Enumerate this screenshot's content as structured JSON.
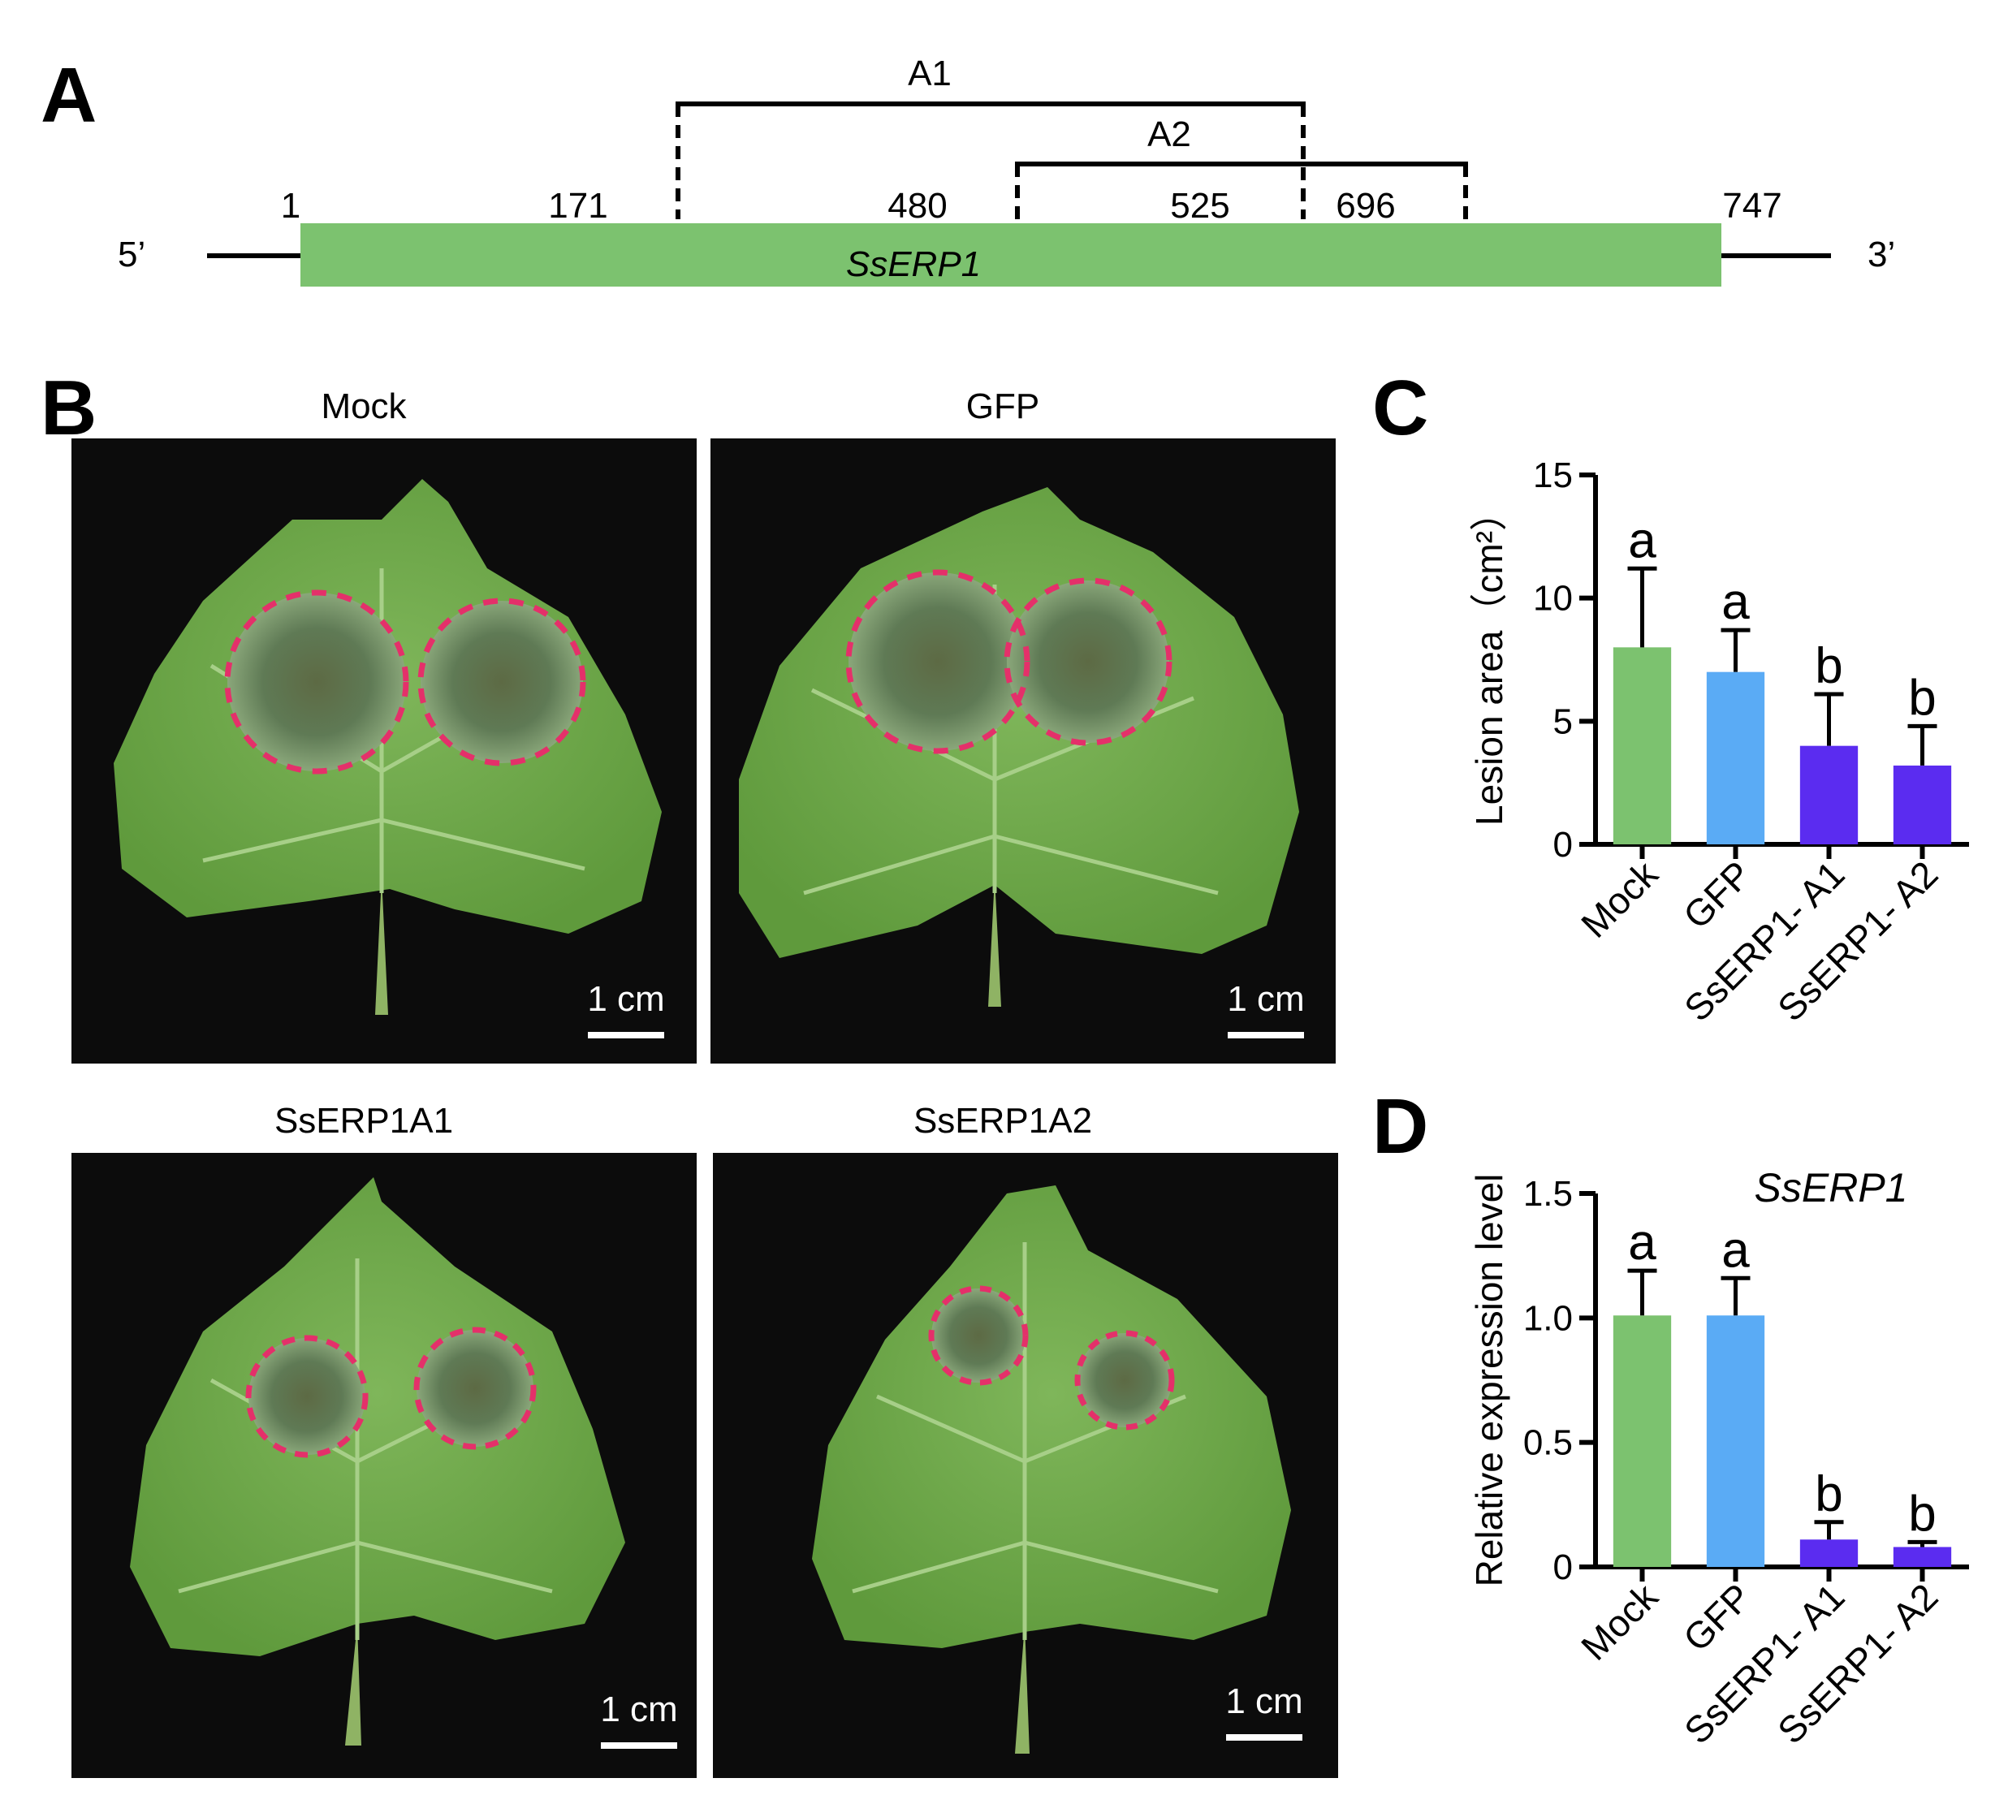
{
  "panel_a": {
    "letter": "A",
    "five_prime": "5’",
    "three_prime": "3’",
    "gene_label": "SsERP1",
    "positions": [
      "1",
      "171",
      "480",
      "525",
      "696",
      "747"
    ],
    "fragment_a1": "A1",
    "fragment_a2": "A2",
    "gene_color": "#7cc26f"
  },
  "panel_b": {
    "letter": "B",
    "photos": [
      {
        "title": "Mock",
        "scale": "1 cm"
      },
      {
        "title": "GFP",
        "scale": "1 cm"
      },
      {
        "title": "SsERP1A1",
        "scale": "1 cm"
      },
      {
        "title": "SsERP1A2",
        "scale": "1 cm"
      }
    ]
  },
  "chart_data": [
    {
      "panel": "C",
      "type": "bar",
      "title": "",
      "ylabel": "Lesion area（cm²）",
      "categories": [
        "Mock",
        "GFP",
        "SsERP1- A1",
        "SsERP1- A2"
      ],
      "values": [
        8.0,
        7.0,
        4.0,
        3.2
      ],
      "errors": [
        3.2,
        1.7,
        2.1,
        1.6
      ],
      "significance": [
        "a",
        "a",
        "b",
        "b"
      ],
      "ylim": [
        0,
        15
      ],
      "yticks": [
        "0",
        "5",
        "10",
        "15"
      ],
      "colors": [
        "#7cc26f",
        "#5aabf5",
        "#5b2cf0",
        "#5b2cf0"
      ]
    },
    {
      "panel": "D",
      "type": "bar",
      "title": "SsERP1",
      "ylabel": "Relative expression  level",
      "categories": [
        "Mock",
        "GFP",
        "SsERP1- A1",
        "SsERP1- A2"
      ],
      "values": [
        1.01,
        1.01,
        0.11,
        0.08
      ],
      "errors": [
        0.18,
        0.15,
        0.07,
        0.02
      ],
      "significance": [
        "a",
        "a",
        "b",
        "b"
      ],
      "ylim": [
        0,
        1.5
      ],
      "yticks": [
        "0",
        "0.5",
        "1.0",
        "1.5"
      ],
      "colors": [
        "#7cc26f",
        "#5aabf5",
        "#5b2cf0",
        "#5b2cf0"
      ]
    }
  ]
}
